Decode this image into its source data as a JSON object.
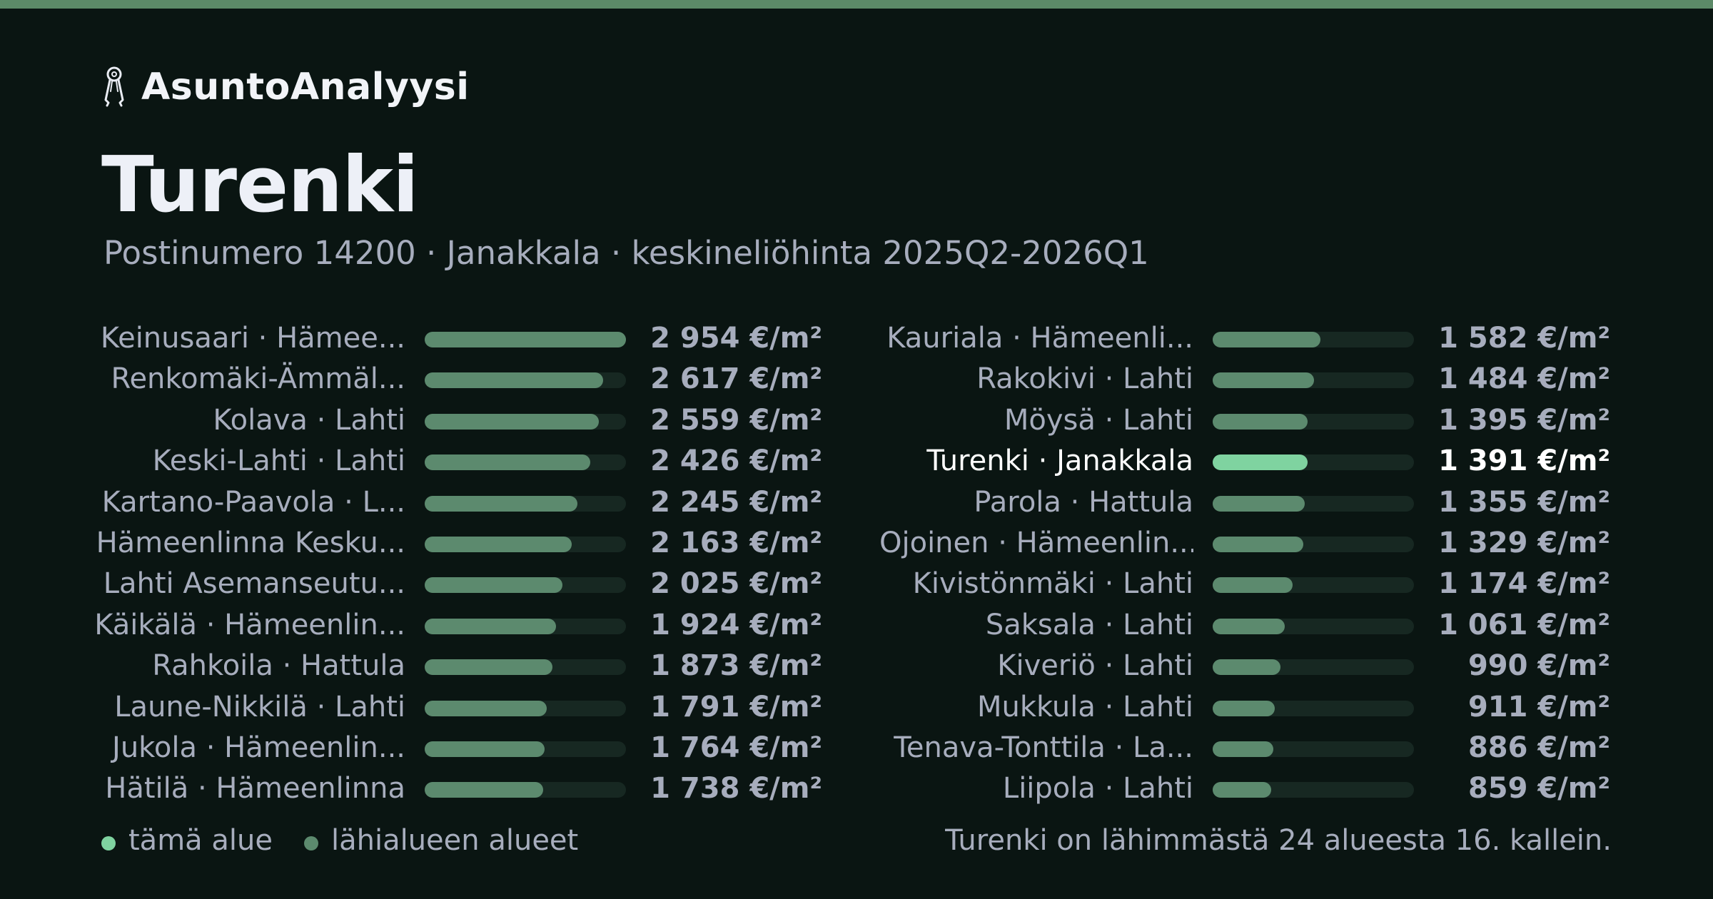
{
  "brand": {
    "name": "AsuntoAnalyysi",
    "icon": "keys-icon"
  },
  "title": "Turenki",
  "subtitle": "Postinumero 14200 · Janakkala · keskineliöhinta 2025Q2-2026Q1",
  "colors": {
    "highlight": "#7fd3a0",
    "neighbor": "#5c8a6e",
    "track": "#172822",
    "background": "#0a1512",
    "topbar": "#5c8a68"
  },
  "legend": {
    "this_area": "tämä alue",
    "nearby": "lähialueen alueet"
  },
  "footnote": "Turenki on lähimmästä 24 alueesta 16. kallein.",
  "chart_data": {
    "type": "bar",
    "orientation": "horizontal",
    "unit": "€/m²",
    "xlim": [
      0,
      2954
    ],
    "grid": false,
    "legend_position": "bottom-left",
    "columns": [
      {
        "rows": [
          {
            "name": "Keinusaari · Hämee...",
            "value": 2954,
            "label": "2 954 €/m²"
          },
          {
            "name": "Renkomäki-Ämmäl...",
            "value": 2617,
            "label": "2 617 €/m²"
          },
          {
            "name": "Kolava · Lahti",
            "value": 2559,
            "label": "2 559 €/m²"
          },
          {
            "name": "Keski-Lahti · Lahti",
            "value": 2426,
            "label": "2 426 €/m²"
          },
          {
            "name": "Kartano-Paavola · L...",
            "value": 2245,
            "label": "2 245 €/m²"
          },
          {
            "name": "Hämeenlinna Kesku...",
            "value": 2163,
            "label": "2 163 €/m²"
          },
          {
            "name": "Lahti Asemanseutu...",
            "value": 2025,
            "label": "2 025 €/m²"
          },
          {
            "name": "Käikälä · Hämeenlin...",
            "value": 1924,
            "label": "1 924 €/m²"
          },
          {
            "name": "Rahkoila · Hattula",
            "value": 1873,
            "label": "1 873 €/m²"
          },
          {
            "name": "Laune-Nikkilä · Lahti",
            "value": 1791,
            "label": "1 791 €/m²"
          },
          {
            "name": "Jukola · Hämeenlin...",
            "value": 1764,
            "label": "1 764 €/m²"
          },
          {
            "name": "Hätilä · Hämeenlinna",
            "value": 1738,
            "label": "1 738 €/m²"
          }
        ]
      },
      {
        "rows": [
          {
            "name": "Kauriala · Hämeenli...",
            "value": 1582,
            "label": "1 582 €/m²"
          },
          {
            "name": "Rakokivi · Lahti",
            "value": 1484,
            "label": "1 484 €/m²"
          },
          {
            "name": "Möysä · Lahti",
            "value": 1395,
            "label": "1 395 €/m²"
          },
          {
            "name": "Turenki · Janakkala",
            "value": 1391,
            "label": "1 391 €/m²",
            "highlight": true
          },
          {
            "name": "Parola · Hattula",
            "value": 1355,
            "label": "1 355 €/m²"
          },
          {
            "name": "Ojoinen · Hämeenlin...",
            "value": 1329,
            "label": "1 329 €/m²"
          },
          {
            "name": "Kivistönmäki · Lahti",
            "value": 1174,
            "label": "1 174 €/m²"
          },
          {
            "name": "Saksala · Lahti",
            "value": 1061,
            "label": "1 061 €/m²"
          },
          {
            "name": "Kiveriö · Lahti",
            "value": 990,
            "label": "990 €/m²"
          },
          {
            "name": "Mukkula · Lahti",
            "value": 911,
            "label": "911 €/m²"
          },
          {
            "name": "Tenava-Tonttila · La...",
            "value": 886,
            "label": "886 €/m²"
          },
          {
            "name": "Liipola · Lahti",
            "value": 859,
            "label": "859 €/m²"
          }
        ]
      }
    ]
  }
}
